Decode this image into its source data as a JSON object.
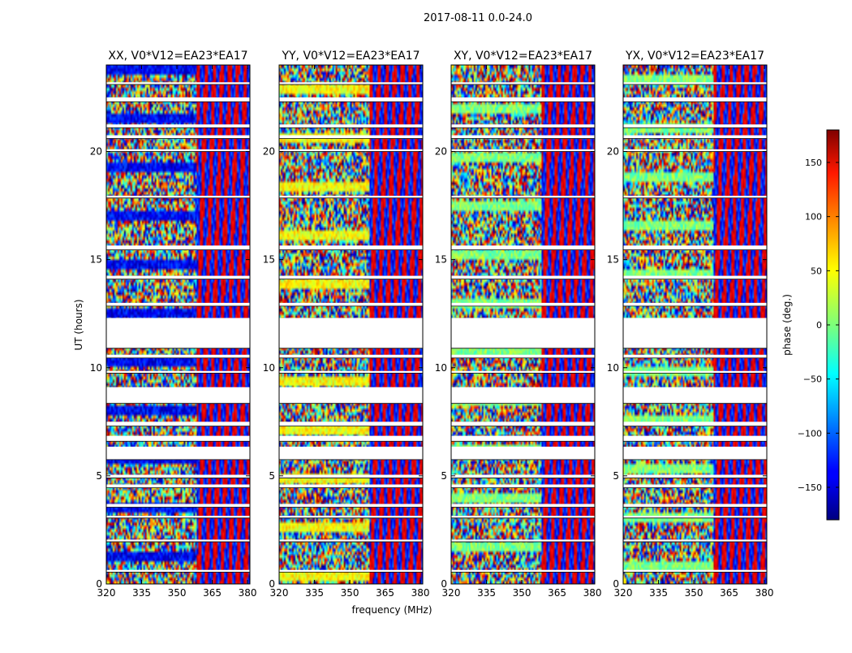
{
  "figure": {
    "suptitle": "2017-08-11 0.0-24.0",
    "xlabel": "frequency (MHz)",
    "ylabel": "UT (hours)",
    "colorbar_label": "phase (deg.)"
  },
  "chart_data": {
    "type": "heatmap",
    "title": "2017-08-11 0.0-24.0",
    "xlabel": "frequency (MHz)",
    "ylabel": "UT (hours)",
    "xlim": [
      320,
      381
    ],
    "ylim": [
      0,
      24
    ],
    "x_ticks": [
      320,
      335,
      350,
      365,
      380
    ],
    "y_ticks": [
      0,
      5,
      10,
      15,
      20
    ],
    "colormap": "jet",
    "colorbar": {
      "label": "phase (deg.)",
      "range": [
        -180,
        180
      ],
      "ticks": [
        -150,
        -100,
        -50,
        0,
        50,
        100,
        150
      ],
      "tick_labels": [
        "−150",
        "−100",
        "−50",
        "0",
        "50",
        "100",
        "150"
      ]
    },
    "gaps_ut_hours": [
      [
        0.55,
        0.65
      ],
      [
        1.95,
        2.05
      ],
      [
        3.05,
        3.15
      ],
      [
        3.55,
        3.7
      ],
      [
        4.45,
        4.6
      ],
      [
        4.9,
        5.05
      ],
      [
        5.75,
        6.35
      ],
      [
        6.6,
        6.85
      ],
      [
        7.3,
        7.5
      ],
      [
        8.35,
        9.1
      ],
      [
        9.75,
        9.85
      ],
      [
        10.45,
        10.6
      ],
      [
        10.9,
        12.3
      ],
      [
        12.85,
        13.0
      ],
      [
        14.1,
        14.25
      ],
      [
        15.45,
        15.65
      ],
      [
        17.85,
        17.95
      ],
      [
        20.0,
        20.1
      ],
      [
        20.6,
        20.75
      ],
      [
        21.1,
        21.25
      ],
      [
        22.3,
        22.5
      ],
      [
        23.1,
        23.2
      ]
    ],
    "panels": [
      {
        "title": "XX, V0*V12=EA23*EA17",
        "freq_ticks": [
          "320",
          "335",
          "350",
          "365",
          "380"
        ],
        "ut_ticks": [
          "0",
          "5",
          "10",
          "15",
          "20"
        ]
      },
      {
        "title": "YY, V0*V12=EA23*EA17",
        "freq_ticks": [
          "320",
          "335",
          "350",
          "365",
          "380"
        ],
        "ut_ticks": [
          "0",
          "5",
          "10",
          "15",
          "20"
        ]
      },
      {
        "title": "XY, V0*V12=EA23*EA17",
        "freq_ticks": [
          "320",
          "335",
          "350",
          "365",
          "380"
        ],
        "ut_ticks": [
          "0",
          "5",
          "10",
          "15",
          "20"
        ]
      },
      {
        "title": "YX, V0*V12=EA23*EA17",
        "freq_ticks": [
          "320",
          "335",
          "350",
          "365",
          "380"
        ],
        "ut_ticks": [
          "0",
          "5",
          "10",
          "15",
          "20"
        ]
      }
    ]
  }
}
